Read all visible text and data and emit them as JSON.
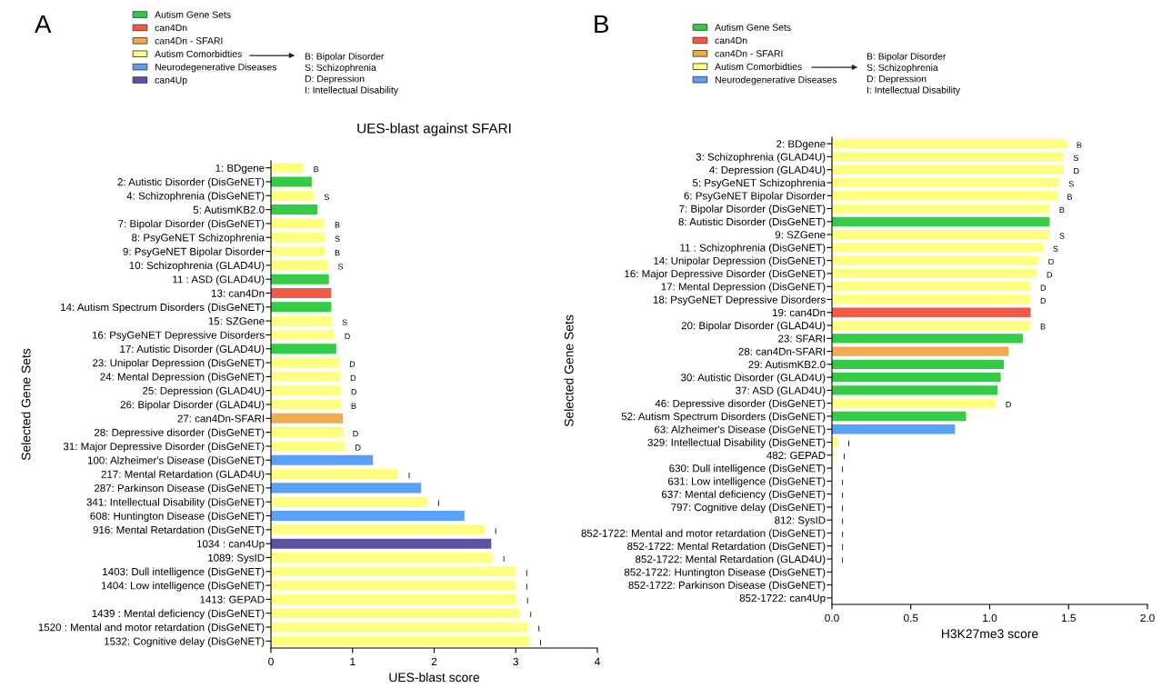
{
  "chart_data": [
    {
      "type": "bar",
      "orientation": "horizontal",
      "title": "UES-blast against SFARI",
      "xlabel": "UES-blast score",
      "ylabel": "Selected Gene Sets",
      "categories": [
        "1: BDgene",
        "2: Autistic Disorder (DisGeNET)",
        "4: Schizophrenia (DisGeNET)",
        "5: AutismKB2.0",
        "7: Bipolar Disorder (DisGeNET)",
        "8: PsyGeNET Schizophrenia",
        "9: PsyGeNET Bipolar Disorder",
        "10: Schizophrenia (GLAD4U)",
        "11 : ASD (GLAD4U)",
        "13: can4Dn",
        "14: Autism Spectrum Disorders (DisGeNET)",
        "15: SZGene",
        "16: PsyGeNET Depressive Disorders",
        "17: Autistic Disorder (GLAD4U)",
        "23: Unipolar Depression (DisGeNET)",
        "24: Mental Depression (DisGeNET)",
        "25: Depression (GLAD4U)",
        "26: Bipolar Disorder (GLAD4U)",
        "27: can4Dn-SFARI",
        "28: Depressive disorder (DisGeNET)",
        "31: Major Depressive Disorder (DisGeNET)",
        "100: Alzheimer's Disease (DisGeNET)",
        "217: Mental Retardation (GLAD4U)",
        "287: Parkinson Disease (DisGeNET)",
        "341: Intellectual Disability (DisGeNET)",
        "608: Huntington Disease (DisGeNET)",
        "916: Mental Retardation (DisGeNET)",
        "1034 : can4Up",
        "1089: SysID",
        "1403: Dull intelligence (DisGeNET)",
        "1404: Low intelligence (DisGeNET)",
        "1413: GEPAD",
        "1439 : Mental deficiency (DisGeNET)",
        "1520 : Mental and motor retardation (DisGeNET)",
        "1532: Cognitive delay (DisGeNET)"
      ],
      "series": [
        {
          "name": "Autism Gene Sets",
          "color": "#33cc44",
          "values": [
            null,
            0.5,
            null,
            0.57,
            null,
            null,
            null,
            null,
            0.71,
            null,
            0.74,
            null,
            null,
            0.8,
            null,
            null,
            null,
            null,
            null,
            null,
            null,
            null,
            null,
            null,
            null,
            null,
            null,
            null,
            null,
            null,
            null,
            null,
            null,
            null,
            null
          ]
        },
        {
          "name": "can4Dn",
          "color": "#f05a46",
          "values": [
            null,
            null,
            null,
            null,
            null,
            null,
            null,
            null,
            null,
            0.74,
            null,
            null,
            null,
            null,
            null,
            null,
            null,
            null,
            null,
            null,
            null,
            null,
            null,
            null,
            null,
            null,
            null,
            null,
            null,
            null,
            null,
            null,
            null,
            null,
            null
          ]
        },
        {
          "name": "can4Dn - SFARI",
          "color": "#f0aa50",
          "values": [
            null,
            null,
            null,
            null,
            null,
            null,
            null,
            null,
            null,
            null,
            null,
            null,
            null,
            null,
            null,
            null,
            null,
            null,
            0.88,
            null,
            null,
            null,
            null,
            null,
            null,
            null,
            null,
            null,
            null,
            null,
            null,
            null,
            null,
            null,
            null
          ]
        },
        {
          "name": "Autism Comorbidties",
          "color": "#ffff80",
          "values": [
            0.4,
            null,
            0.53,
            null,
            0.66,
            0.66,
            0.66,
            0.7,
            null,
            null,
            null,
            0.75,
            0.78,
            null,
            0.84,
            0.85,
            0.86,
            0.86,
            null,
            0.88,
            0.91,
            null,
            1.56,
            null,
            1.92,
            null,
            2.62,
            null,
            2.72,
            3.0,
            3.0,
            3.01,
            3.05,
            3.15,
            3.17
          ],
          "value_labels": [
            "B",
            null,
            "S",
            null,
            "B",
            "S",
            "B",
            "S",
            null,
            null,
            null,
            "S",
            "D",
            null,
            "D",
            "D",
            "D",
            "B",
            null,
            "D",
            "D",
            null,
            "I",
            null,
            "I",
            null,
            "I",
            null,
            "I",
            "I",
            "I",
            "I",
            "I",
            "I",
            "I"
          ]
        },
        {
          "name": "Neurodegenerative Diseases",
          "color": "#58a0f8",
          "values": [
            null,
            null,
            null,
            null,
            null,
            null,
            null,
            null,
            null,
            null,
            null,
            null,
            null,
            null,
            null,
            null,
            null,
            null,
            null,
            null,
            null,
            1.25,
            null,
            1.84,
            null,
            2.37,
            null,
            null,
            null,
            null,
            null,
            null,
            null,
            null,
            null
          ]
        },
        {
          "name": "can4Up",
          "color": "#6050a8",
          "values": [
            null,
            null,
            null,
            null,
            null,
            null,
            null,
            null,
            null,
            null,
            null,
            null,
            null,
            null,
            null,
            null,
            null,
            null,
            null,
            null,
            null,
            null,
            null,
            null,
            null,
            null,
            null,
            2.7,
            null,
            null,
            null,
            null,
            null,
            null,
            null
          ]
        }
      ],
      "xlim": [
        0,
        4
      ],
      "xticks": [
        0,
        1,
        2,
        3,
        4
      ],
      "legend": "top left",
      "annotations": [
        "A",
        "B: Bipolar Disorder\nS: Schizophrenia\nD: Depression\nI: Intellectual Disability"
      ]
    },
    {
      "type": "bar",
      "orientation": "horizontal",
      "xlabel": "H3K27me3 score",
      "ylabel": "Selected Gene Sets",
      "categories": [
        "2: BDgene",
        "3: Schizophrenia (GLAD4U)",
        "4: Depression (GLAD4U)",
        "5: PsyGeNET Schizophrenia",
        "6: PsyGeNET Bipolar Disorder",
        "7: Bipolar Disorder (DisGeNET)",
        "8: Autistic Disorder (DisGeNET)",
        "9: SZGene",
        "11 : Schizophrenia (DisGeNET)",
        "14: Unipolar Depression (DisGeNET)",
        "16: Major Depressive Disorder (DisGeNET)",
        "17: Mental Depression (DisGeNET)",
        "18: PsyGeNET Depressive Disorders",
        "19: can4Dn",
        "20: Bipolar Disorder (GLAD4U)",
        "23: SFARI",
        "28: can4Dn-SFARI",
        "29: AutismKB2.0",
        "30: Autistic Disorder (GLAD4U)",
        "37: ASD (GLAD4U)",
        "46: Depressive disorder (DisGeNET)",
        "52: Autism Spectrum Disorders (DisGeNET)",
        "63: Alzheimer's Disease (DisGeNET)",
        "329: Intellectual Disability (DisGeNET)",
        "482: GEPAD",
        "630: Dull intelligence (DisGeNET)",
        "631: Low intelligence (DisGeNET)",
        "637: Mental deficiency (DisGeNET)",
        "797: Cognitive delay (DisGeNET)",
        "812: SysID",
        "852-1722: Mental and motor retardation (DisGeNET)",
        "852-1722: Mental Retardation (DisGeNET)",
        "852-1722: Mental Retardation (GLAD4U)",
        "852-1722: Huntington Disease (DisGeNET)",
        "852-1722: Parkinson Disease (DisGeNET)",
        "852-1722: can4Up"
      ],
      "series": [
        {
          "name": "Autism Gene Sets",
          "color": "#33cc44",
          "values": [
            null,
            null,
            null,
            null,
            null,
            null,
            1.38,
            null,
            null,
            null,
            null,
            null,
            null,
            null,
            null,
            1.21,
            null,
            1.09,
            1.07,
            1.05,
            null,
            0.85,
            null,
            null,
            null,
            null,
            null,
            null,
            null,
            null,
            null,
            null,
            null,
            null,
            null,
            null
          ]
        },
        {
          "name": "can4Dn",
          "color": "#f05a46",
          "values": [
            null,
            null,
            null,
            null,
            null,
            null,
            null,
            null,
            null,
            null,
            null,
            null,
            null,
            1.26,
            null,
            null,
            null,
            null,
            null,
            null,
            null,
            null,
            null,
            null,
            null,
            null,
            null,
            null,
            null,
            null,
            null,
            null,
            null,
            null,
            null,
            null
          ]
        },
        {
          "name": "can4Dn - SFARI",
          "color": "#f0aa50",
          "values": [
            null,
            null,
            null,
            null,
            null,
            null,
            null,
            null,
            null,
            null,
            null,
            null,
            null,
            null,
            null,
            null,
            1.12,
            null,
            null,
            null,
            null,
            null,
            null,
            null,
            null,
            null,
            null,
            null,
            null,
            null,
            null,
            null,
            null,
            null,
            null,
            null
          ]
        },
        {
          "name": "Autism Comorbidties",
          "color": "#ffff80",
          "values": [
            1.49,
            1.47,
            1.47,
            1.44,
            1.43,
            1.38,
            null,
            1.38,
            1.34,
            1.31,
            1.3,
            1.26,
            1.26,
            null,
            1.26,
            null,
            null,
            null,
            null,
            null,
            1.04,
            null,
            null,
            0.04,
            0.01,
            0,
            0,
            0,
            0,
            0,
            0,
            0,
            0,
            null,
            null,
            null
          ],
          "value_labels": [
            "B",
            "S",
            "D",
            "S",
            "B",
            "B",
            null,
            "S",
            "S",
            "D",
            "D",
            "D",
            "D",
            null,
            "B",
            null,
            null,
            null,
            null,
            null,
            "D",
            null,
            null,
            "I",
            "I",
            "I",
            "I",
            "I",
            "I",
            "I",
            "I",
            "I",
            "I",
            null,
            null,
            null
          ]
        },
        {
          "name": "Neurodegenerative Diseases",
          "color": "#58a0f8",
          "values": [
            null,
            null,
            null,
            null,
            null,
            null,
            null,
            null,
            null,
            null,
            null,
            null,
            null,
            null,
            null,
            null,
            null,
            null,
            null,
            null,
            null,
            null,
            0.78,
            null,
            null,
            null,
            null,
            null,
            null,
            null,
            null,
            null,
            null,
            0,
            0,
            null
          ]
        },
        {
          "color": "#6050a8",
          "values": [
            null,
            null,
            null,
            null,
            null,
            null,
            null,
            null,
            null,
            null,
            null,
            null,
            null,
            null,
            null,
            null,
            null,
            null,
            null,
            null,
            null,
            null,
            null,
            null,
            null,
            null,
            null,
            null,
            null,
            null,
            null,
            null,
            null,
            null,
            null,
            0
          ]
        }
      ],
      "xlim": [
        0,
        2
      ],
      "xticks": [
        {
          "value": 0,
          "label": "0.0"
        },
        {
          "value": 0.5,
          "label": "0.5"
        },
        {
          "value": 1,
          "label": "1.0"
        },
        {
          "value": 1.5,
          "label": "1.5"
        },
        {
          "value": 2,
          "label": "2.0"
        }
      ],
      "legend": "top left",
      "annotations": [
        "B",
        "B: Bipolar Disorder\nS: Schizophrenia\nD: Depression\nI: Intellectual Disability"
      ]
    }
  ]
}
